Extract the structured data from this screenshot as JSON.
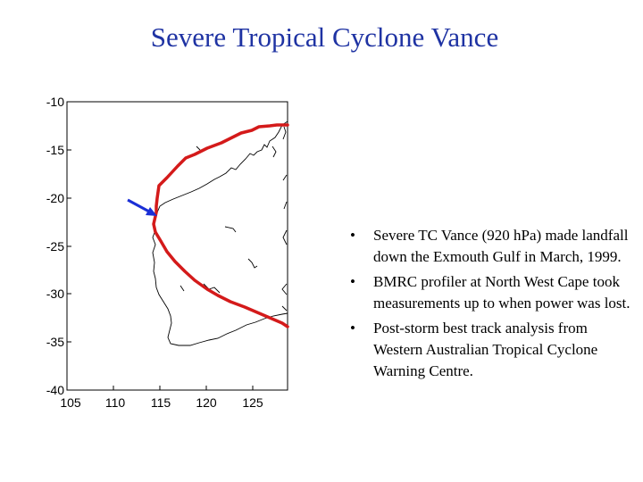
{
  "slide": {
    "title": "Severe Tropical Cyclone Vance"
  },
  "map": {
    "x_ticks": [
      "105",
      "110",
      "115",
      "120",
      "125"
    ],
    "y_ticks": [
      "-10",
      "-15",
      "-20",
      "-25",
      "-30",
      "-35",
      "-40"
    ],
    "track_color": "#d41a1a",
    "arrow_color": "#1b2fd6",
    "coast_color": "#000000"
  },
  "bullets": [
    {
      "marker": "•",
      "text": "Severe TC Vance (920 hPa) made landfall down the Exmouth Gulf in March, 1999."
    },
    {
      "marker": "•",
      "text": " BMRC profiler at North West Cape took measurements up to when power was lost."
    },
    {
      "marker": "•",
      "text": "Post-storm best track analysis from Western Australian Tropical Cyclone Warning Centre."
    }
  ]
}
